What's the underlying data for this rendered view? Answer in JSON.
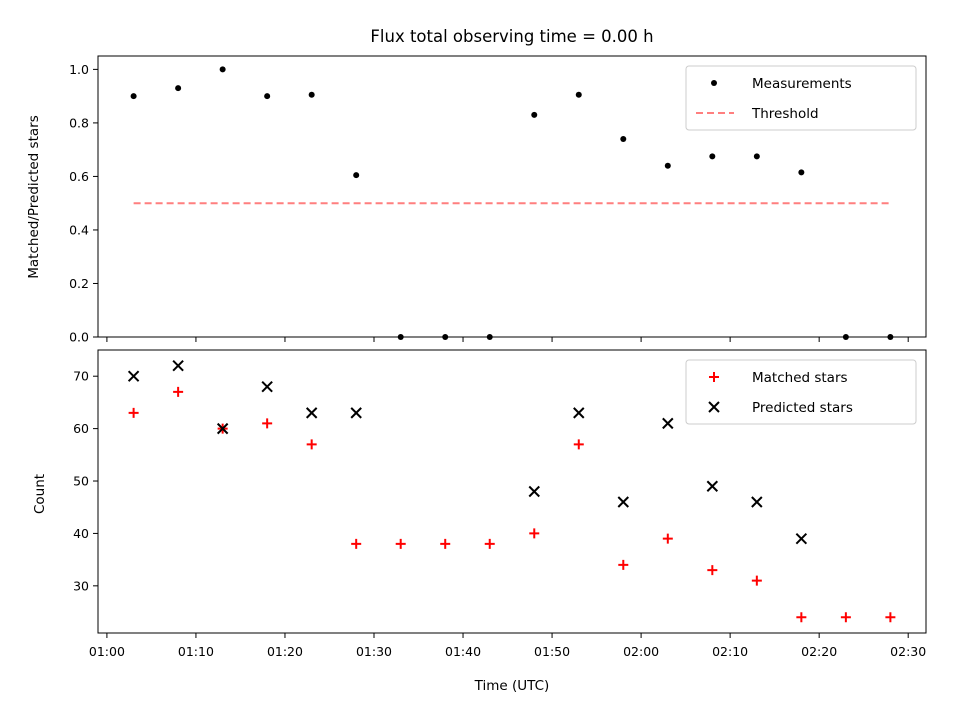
{
  "chart_data": [
    {
      "type": "scatter",
      "title": "Flux total observing time = 0.00 h",
      "xlabel": "",
      "ylabel": "Matched/Predicted stars",
      "xlim": [
        "00:59",
        "02:32"
      ],
      "ylim": [
        0,
        1.05
      ],
      "x_ticks": [
        "01:00",
        "01:10",
        "01:20",
        "01:30",
        "01:40",
        "01:50",
        "02:00",
        "02:10",
        "02:20",
        "02:30"
      ],
      "y_ticks": [
        "0.0",
        "0.2",
        "0.4",
        "0.6",
        "0.8",
        "1.0"
      ],
      "grid": false,
      "legend": "upper-right",
      "series": [
        {
          "name": "Measurements",
          "marker": "dot",
          "color": "#000000",
          "x": [
            "01:03",
            "01:08",
            "01:13",
            "01:18",
            "01:23",
            "01:28",
            "01:33",
            "01:38",
            "01:43",
            "01:48",
            "01:53",
            "01:58",
            "02:03",
            "02:08",
            "02:13",
            "02:18",
            "02:23",
            "02:28"
          ],
          "y": [
            0.9,
            0.93,
            1.0,
            0.9,
            0.905,
            0.605,
            0.0,
            0.0,
            0.0,
            0.83,
            0.905,
            0.74,
            0.64,
            0.675,
            0.675,
            0.615,
            0.0,
            0.0
          ]
        },
        {
          "name": "Threshold",
          "style": "dashed",
          "color": "#ff7f7f",
          "x": [
            "01:03",
            "02:28"
          ],
          "y": [
            0.5,
            0.5
          ]
        }
      ]
    },
    {
      "type": "scatter",
      "title": "",
      "xlabel": "Time (UTC)",
      "ylabel": "Count",
      "xlim": [
        "00:59",
        "02:32"
      ],
      "ylim": [
        21,
        75
      ],
      "x_ticks": [
        "01:00",
        "01:10",
        "01:20",
        "01:30",
        "01:40",
        "01:50",
        "02:00",
        "02:10",
        "02:20",
        "02:30"
      ],
      "y_ticks": [
        "30",
        "40",
        "50",
        "60",
        "70"
      ],
      "grid": false,
      "legend": "upper-right",
      "series": [
        {
          "name": "Matched stars",
          "marker": "plus",
          "color": "#ff0000",
          "x": [
            "01:03",
            "01:08",
            "01:13",
            "01:18",
            "01:23",
            "01:28",
            "01:33",
            "01:38",
            "01:43",
            "01:48",
            "01:53",
            "01:58",
            "02:03",
            "02:08",
            "02:13",
            "02:18",
            "02:23",
            "02:28"
          ],
          "y": [
            63,
            67,
            60,
            61,
            57,
            38,
            38,
            38,
            38,
            40,
            57,
            34,
            39,
            33,
            31,
            24,
            24,
            24
          ]
        },
        {
          "name": "Predicted stars",
          "marker": "x",
          "color": "#000000",
          "x": [
            "01:03",
            "01:08",
            "01:13",
            "01:18",
            "01:23",
            "01:28",
            "01:48",
            "01:53",
            "01:58",
            "02:03",
            "02:08",
            "02:13",
            "02:18"
          ],
          "y": [
            70,
            72,
            60,
            68,
            63,
            63,
            48,
            63,
            46,
            61,
            49,
            46,
            39
          ]
        }
      ]
    }
  ]
}
